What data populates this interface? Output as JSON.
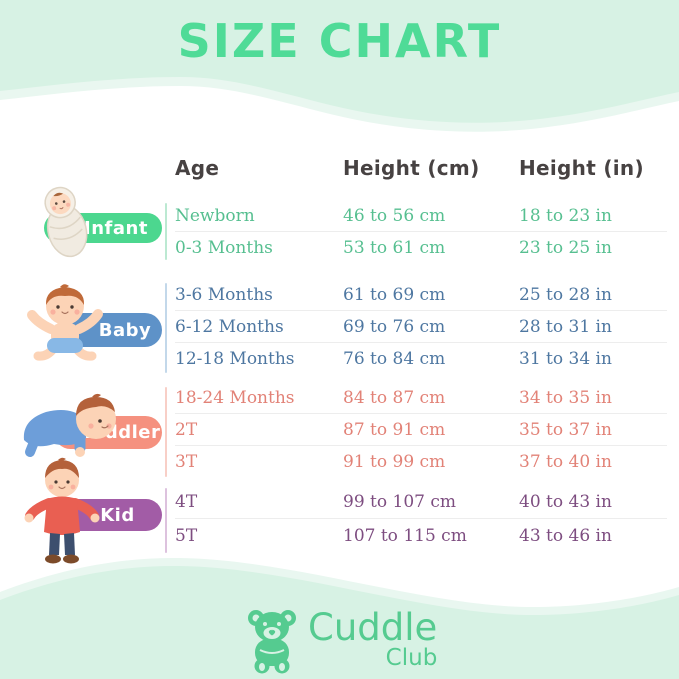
{
  "page": {
    "title": "SIZE CHART"
  },
  "colors": {
    "band_mint": "#d7f2e4",
    "band_mint_light": "#e9f7f0",
    "title_green": "#4fdb97",
    "header_text": "#474242",
    "row_separator": "#ededed",
    "brand_green": "#55cb90",
    "white": "#ffffff"
  },
  "table": {
    "headers": [
      "Age",
      "Height (cm)",
      "Height (in)"
    ],
    "groups": [
      {
        "label": "Infant",
        "pill_color": "#4cd78f",
        "text_color": "#56bf90",
        "line_color": "#bce9d2",
        "illustration": "swaddled-newborn-illustration",
        "rows": [
          [
            "Newborn",
            "46 to 56 cm",
            "18 to 23 in"
          ],
          [
            "0-3 Months",
            "53 to 61 cm",
            "23 to 25 in"
          ]
        ]
      },
      {
        "label": "Baby",
        "pill_color": "#5e92c8",
        "text_color": "#4e77a1",
        "line_color": "#c3d8ea",
        "illustration": "sitting-baby-illustration",
        "rows": [
          [
            "3-6 Months",
            "61 to 69 cm",
            "25 to 28 in"
          ],
          [
            "6-12 Months",
            "69 to 76 cm",
            "28 to 31 in"
          ],
          [
            "12-18 Months",
            "76 to 84 cm",
            "31 to 34 in"
          ]
        ]
      },
      {
        "label": "Toddler",
        "pill_color": "#f5917f",
        "text_color": "#e28277",
        "line_color": "#f8cfc7",
        "illustration": "crawling-toddler-illustration",
        "rows": [
          [
            "18-24 Months",
            "84 to 87 cm",
            "34 to 35 in"
          ],
          [
            "2T",
            "87 to 91 cm",
            "35 to 37 in"
          ],
          [
            "3T",
            "91 to 99 cm",
            "37 to 40 in"
          ]
        ]
      },
      {
        "label": "Kid",
        "pill_color": "#a25ca6",
        "text_color": "#7d4d80",
        "line_color": "#ddc2de",
        "illustration": "standing-kid-illustration",
        "rows": [
          [
            "4T",
            "99 to 107 cm",
            "40 to 43 in"
          ],
          [
            "5T",
            "107 to 115 cm",
            "43 to 46 in"
          ]
        ]
      }
    ]
  },
  "footer": {
    "brand_line1": "Cuddle",
    "brand_line2": "Club",
    "logo_icon": "teddy-bear-icon"
  }
}
